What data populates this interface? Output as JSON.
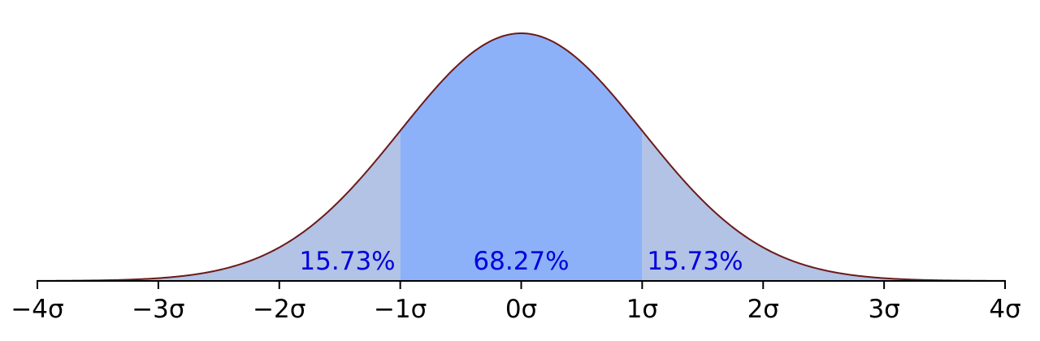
{
  "chart_data": {
    "type": "area",
    "distribution": "normal",
    "mean": 0,
    "sd": 1,
    "xlim": [
      -4,
      4
    ],
    "ticks": [
      {
        "value": -4,
        "label": "−4σ"
      },
      {
        "value": -3,
        "label": "−3σ"
      },
      {
        "value": -2,
        "label": "−2σ"
      },
      {
        "value": -1,
        "label": "−1σ"
      },
      {
        "value": 0,
        "label": "0σ"
      },
      {
        "value": 1,
        "label": "1σ"
      },
      {
        "value": 2,
        "label": "2σ"
      },
      {
        "value": 3,
        "label": "3σ"
      },
      {
        "value": 4,
        "label": "4σ"
      }
    ],
    "regions": [
      {
        "from": -4,
        "to": -1,
        "label": "15.73%",
        "color": "#b2c3e5"
      },
      {
        "from": -1,
        "to": 1,
        "label": "68.27%",
        "color": "#8cb1f8"
      },
      {
        "from": 1,
        "to": 4,
        "label": "15.73%",
        "color": "#b2c3e5"
      }
    ],
    "curve_color": "#6b1a1a",
    "label_color": "#0000dd",
    "grid": false,
    "title": "",
    "xlabel": "",
    "ylabel": ""
  }
}
